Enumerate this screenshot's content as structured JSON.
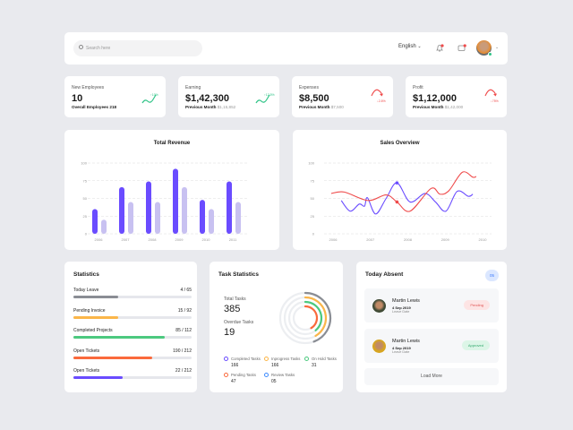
{
  "header": {
    "search_placeholder": "Search here",
    "language": "English",
    "icons": [
      "search-icon",
      "bell-icon",
      "message-icon",
      "avatar",
      "chevron-down-icon"
    ]
  },
  "stats": [
    {
      "label": "New Employees",
      "value": "10",
      "sub_label": "Overall Employees 218",
      "sub_value": "",
      "change": "↑10%",
      "trend": "up"
    },
    {
      "label": "Earning",
      "value": "$1,42,300",
      "sub_label": "Previous Month",
      "sub_value": "$1,15,852",
      "change": "↑12.5%",
      "trend": "up"
    },
    {
      "label": "Expenses",
      "value": "$8,500",
      "sub_label": "Previous Month",
      "sub_value": "$7,500",
      "change": "↓2.8%",
      "trend": "down"
    },
    {
      "label": "Profit",
      "value": "$1,12,000",
      "sub_label": "Previous Month",
      "sub_value": "$1,42,000",
      "change": "↓75%",
      "trend": "down"
    }
  ],
  "colors": {
    "primary": "#6a4cff",
    "primary_light": "#c8c1f1",
    "red": "#ef4b4b",
    "green": "#2fc487",
    "orange": "#fbb649",
    "gray": "#8a8d94"
  },
  "chart_data": [
    {
      "type": "bar",
      "title": "Total Revenue",
      "categories": [
        "2006",
        "2007",
        "2008",
        "2009",
        "2010",
        "2011"
      ],
      "series": [
        {
          "values": [
            35,
            66,
            74,
            92,
            48,
            74
          ]
        },
        {
          "values": [
            20,
            45,
            45,
            66,
            35,
            45
          ]
        }
      ],
      "ylim": [
        0,
        100
      ],
      "yticks": [
        0,
        25,
        50,
        75,
        100
      ],
      "grid": true
    },
    {
      "type": "line",
      "title": "Sales Overview",
      "xticks": [
        "2006",
        "2007",
        "2008",
        "2009",
        "2010"
      ],
      "xlim": [
        2006,
        2010
      ],
      "ylim": [
        0,
        100
      ],
      "yticks": [
        0,
        25,
        50,
        75,
        100
      ],
      "grid": true,
      "series": [
        {
          "color": "#6a4cff",
          "x": [
            2006.22,
            2006.46,
            2006.7,
            2006.84,
            2006.92,
            2007.14,
            2007.42,
            2007.71,
            2008.06,
            2008.46,
            2008.74,
            2009.02,
            2009.32,
            2009.62,
            2009.74
          ],
          "y": [
            47,
            32,
            42,
            39,
            51,
            28,
            50,
            72,
            45,
            57,
            45,
            32,
            60,
            53,
            56
          ]
        },
        {
          "color": "#ef4b4b",
          "x": [
            2005.95,
            2006.3,
            2006.94,
            2007.42,
            2007.71,
            2008.06,
            2008.62,
            2008.86,
            2009.1,
            2009.46,
            2009.74,
            2009.83
          ],
          "y": [
            57,
            59,
            47,
            55,
            45,
            32,
            64,
            56,
            61,
            87,
            80,
            81
          ]
        }
      ]
    }
  ],
  "statistics": {
    "title": "Statistics",
    "items": [
      {
        "label": "Today Leave",
        "value": "4 / 65",
        "fraction": 0.38,
        "color": "#8a8d94"
      },
      {
        "label": "Pending Invoice",
        "value": "15 / 92",
        "fraction": 0.38,
        "color": "#fbb649"
      },
      {
        "label": "Completed Projects",
        "value": "85 / 112",
        "fraction": 0.77,
        "color": "#4cc97f"
      },
      {
        "label": "Open Tickets",
        "value": "190 / 212",
        "fraction": 0.67,
        "color": "#fa6a3c"
      },
      {
        "label": "Open Tickets",
        "value": "22 / 212",
        "fraction": 0.42,
        "color": "#6a4cff"
      }
    ]
  },
  "tasks": {
    "title": "Task Statistics",
    "total_label": "Total Tasks",
    "total": "385",
    "overdue_label": "Overdue Tasks",
    "overdue": "19",
    "legend": [
      {
        "label": "Completed Tasks",
        "value": "166",
        "color": "#6a4cff"
      },
      {
        "label": "Inprogress Tasks",
        "value": "166",
        "color": "#fbb649"
      },
      {
        "label": "On Hold Tasks",
        "value": "31",
        "color": "#4cc97f"
      },
      {
        "label": "Pending Tasks",
        "value": "47",
        "color": "#fa6a3c"
      },
      {
        "label": "Review Tasks",
        "value": "05",
        "color": "#3d8bfd"
      }
    ]
  },
  "absent": {
    "title": "Today Absent",
    "count": "05",
    "items": [
      {
        "name": "Martin Lewis",
        "date": "4 Sep 2019",
        "date_label": "Leave Date",
        "status": "Pending"
      },
      {
        "name": "Martin Lewis",
        "date": "4 Sep 2019",
        "date_label": "Leave Date",
        "status": "Approved"
      }
    ],
    "load_more": "Load More"
  }
}
